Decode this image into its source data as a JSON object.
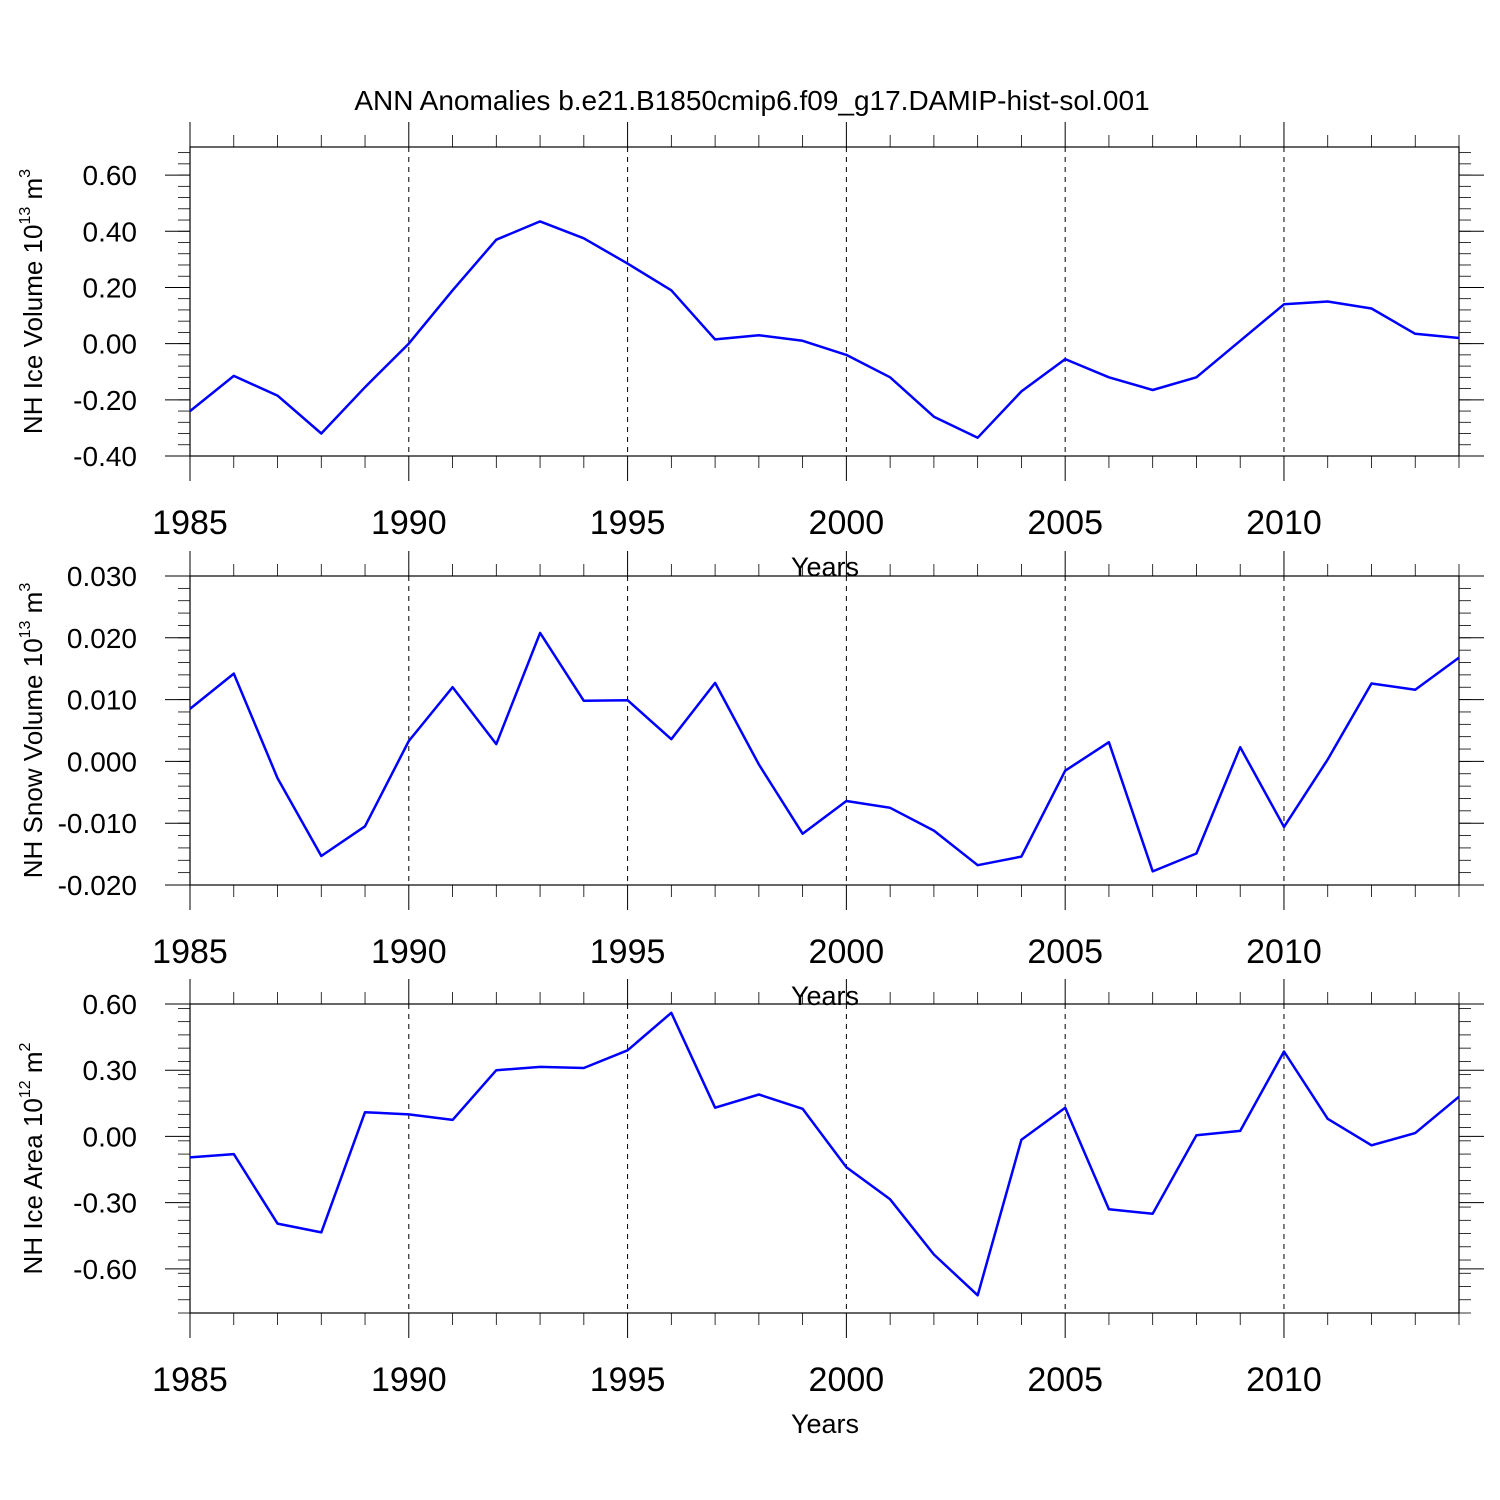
{
  "title": "ANN Anomalies b.e21.B1850cmip6.f09_g17.DAMIP-hist-sol.001",
  "colors": {
    "line": "#0000ff",
    "axis": "#000000",
    "grid": "#000000",
    "background": "#ffffff"
  },
  "chart_data": [
    {
      "type": "line",
      "ylabel_main": "NH Ice Volume 10",
      "ylabel_exp": "13",
      "ylabel_unit": " m",
      "ylabel_unit_exp": "3",
      "xlabel": "Years",
      "xlim": [
        1985,
        2014
      ],
      "ylim": [
        -0.4,
        0.7
      ],
      "yticks": [
        -0.4,
        -0.2,
        0.0,
        0.2,
        0.4,
        0.6
      ],
      "ytick_labels": [
        "-0.40",
        "-0.20",
        "0.00",
        "0.20",
        "0.40",
        "0.60"
      ],
      "xticks": [
        1985,
        1990,
        1995,
        2000,
        2005,
        2010
      ],
      "xtick_labels": [
        "1985",
        "1990",
        "1995",
        "2000",
        "2005",
        "2010"
      ],
      "series": [
        {
          "name": "NH Ice Volume",
          "x": [
            1985,
            1986,
            1987,
            1988,
            1989,
            1990,
            1991,
            1992,
            1993,
            1994,
            1995,
            1996,
            1997,
            1998,
            1999,
            2000,
            2001,
            2002,
            2003,
            2004,
            2005,
            2006,
            2007,
            2008,
            2009,
            2010,
            2011,
            2012,
            2013,
            2014
          ],
          "values": [
            -0.24,
            -0.115,
            -0.185,
            -0.32,
            -0.155,
            0.0,
            0.19,
            0.37,
            0.435,
            0.375,
            0.285,
            0.19,
            0.015,
            0.03,
            0.01,
            -0.04,
            -0.12,
            -0.26,
            -0.335,
            -0.17,
            -0.055,
            -0.12,
            -0.165,
            -0.12,
            0.01,
            0.14,
            0.15,
            0.125,
            0.035,
            0.02
          ]
        }
      ]
    },
    {
      "type": "line",
      "ylabel_main": "NH Snow Volume 10",
      "ylabel_exp": "13",
      "ylabel_unit": " m",
      "ylabel_unit_exp": "3",
      "xlabel": "Years",
      "xlim": [
        1985,
        2014
      ],
      "ylim": [
        -0.02,
        0.03
      ],
      "yticks": [
        -0.02,
        -0.01,
        0.0,
        0.01,
        0.02,
        0.03
      ],
      "ytick_labels": [
        "-0.020",
        "-0.010",
        "0.000",
        "0.010",
        "0.020",
        "0.030"
      ],
      "xticks": [
        1985,
        1990,
        1995,
        2000,
        2005,
        2010
      ],
      "xtick_labels": [
        "1985",
        "1990",
        "1995",
        "2000",
        "2005",
        "2010"
      ],
      "series": [
        {
          "name": "NH Snow Volume",
          "x": [
            1985,
            1986,
            1987,
            1988,
            1989,
            1990,
            1991,
            1992,
            1993,
            1994,
            1995,
            1996,
            1997,
            1998,
            1999,
            2000,
            2001,
            2002,
            2003,
            2004,
            2005,
            2006,
            2007,
            2008,
            2009,
            2010,
            2011,
            2012,
            2013,
            2014
          ],
          "values": [
            0.0085,
            0.0142,
            -0.0027,
            -0.0153,
            -0.0105,
            0.0033,
            0.012,
            0.0028,
            0.0208,
            0.0098,
            0.0099,
            0.0036,
            0.0127,
            -0.0005,
            -0.0117,
            -0.0064,
            -0.0075,
            -0.0112,
            -0.0168,
            -0.0154,
            -0.0015,
            0.0031,
            -0.0178,
            -0.0149,
            0.0023,
            -0.0106,
            0.0003,
            0.0126,
            0.0116,
            0.0168
          ]
        }
      ]
    },
    {
      "type": "line",
      "ylabel_main": "NH Ice Area 10",
      "ylabel_exp": "12",
      "ylabel_unit": " m",
      "ylabel_unit_exp": "2",
      "xlabel": "Years",
      "xlim": [
        1985,
        2014
      ],
      "ylim": [
        -0.8,
        0.6
      ],
      "yticks": [
        -0.6,
        -0.3,
        0.0,
        0.3,
        0.6
      ],
      "ytick_labels": [
        "-0.60",
        "-0.30",
        "0.00",
        "0.30",
        "0.60"
      ],
      "xticks": [
        1985,
        1990,
        1995,
        2000,
        2005,
        2010
      ],
      "xtick_labels": [
        "1985",
        "1990",
        "1995",
        "2000",
        "2005",
        "2010"
      ],
      "series": [
        {
          "name": "NH Ice Area",
          "x": [
            1985,
            1986,
            1987,
            1988,
            1989,
            1990,
            1991,
            1992,
            1993,
            1994,
            1995,
            1996,
            1997,
            1998,
            1999,
            2000,
            2001,
            2002,
            2003,
            2004,
            2005,
            2006,
            2007,
            2008,
            2009,
            2010,
            2011,
            2012,
            2013,
            2014
          ],
          "values": [
            -0.095,
            -0.08,
            -0.395,
            -0.435,
            0.11,
            0.1,
            0.075,
            0.3,
            0.315,
            0.31,
            0.39,
            0.56,
            0.13,
            0.19,
            0.125,
            -0.14,
            -0.285,
            -0.535,
            -0.72,
            -0.015,
            0.13,
            -0.33,
            -0.35,
            0.005,
            0.025,
            0.385,
            0.08,
            -0.04,
            0.015,
            0.18
          ]
        }
      ]
    }
  ]
}
